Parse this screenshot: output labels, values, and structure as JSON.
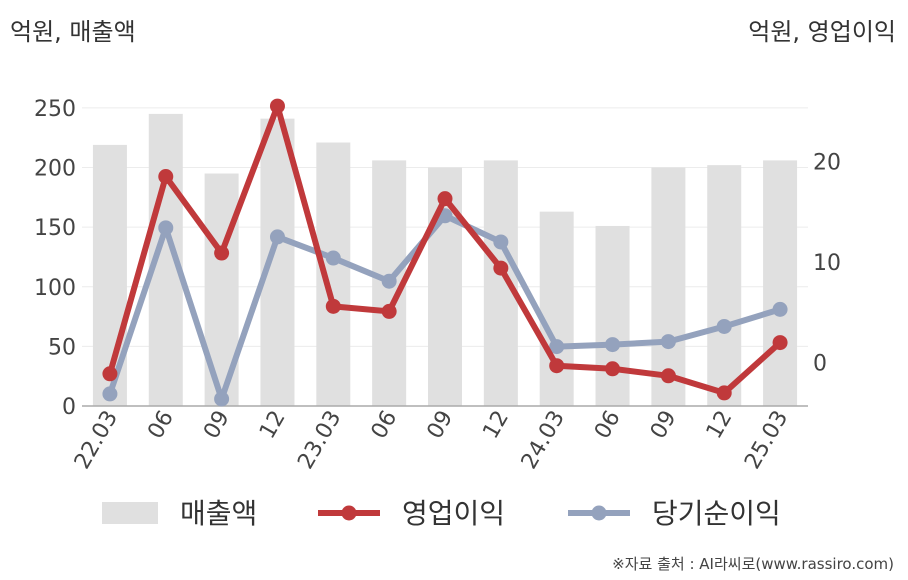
{
  "chart_data": {
    "type": "bar+line",
    "categories": [
      "22.03",
      "06",
      "09",
      "12",
      "23.03",
      "06",
      "09",
      "12",
      "24.03",
      "06",
      "09",
      "12",
      "25.03"
    ],
    "left_axis": {
      "label": "억원, 매출액",
      "ylim": [
        0,
        260
      ],
      "ticks": [
        0,
        50,
        100,
        150,
        200,
        250
      ]
    },
    "right_axis": {
      "label": "억원, 영업이익",
      "ylim": [
        -4.3,
        26.5
      ],
      "ticks": [
        0,
        10,
        20
      ]
    },
    "series": [
      {
        "name": "매출액",
        "type": "bar",
        "axis": "left",
        "color": "#e0e0e0",
        "values": [
          219,
          245,
          195,
          241,
          221,
          206,
          200,
          206,
          163,
          151,
          200,
          202,
          206
        ]
      },
      {
        "name": "영업이익",
        "type": "line",
        "axis": "right",
        "color": "#c0393b",
        "values": [
          -1.1,
          18.5,
          10.9,
          25.5,
          5.6,
          5.1,
          16.3,
          9.4,
          -0.3,
          -0.6,
          -1.3,
          -3.0,
          2.0
        ]
      },
      {
        "name": "당기순이익",
        "type": "line",
        "axis": "right",
        "color": "#94a2bd",
        "values": [
          -3.1,
          13.4,
          -3.6,
          12.5,
          10.4,
          8.1,
          14.6,
          12.0,
          1.6,
          1.8,
          2.1,
          3.6,
          5.3
        ]
      }
    ],
    "grid": true,
    "legend": "bottom"
  },
  "source": "※자료 출처 : AI라씨로(www.rassiro.com)"
}
